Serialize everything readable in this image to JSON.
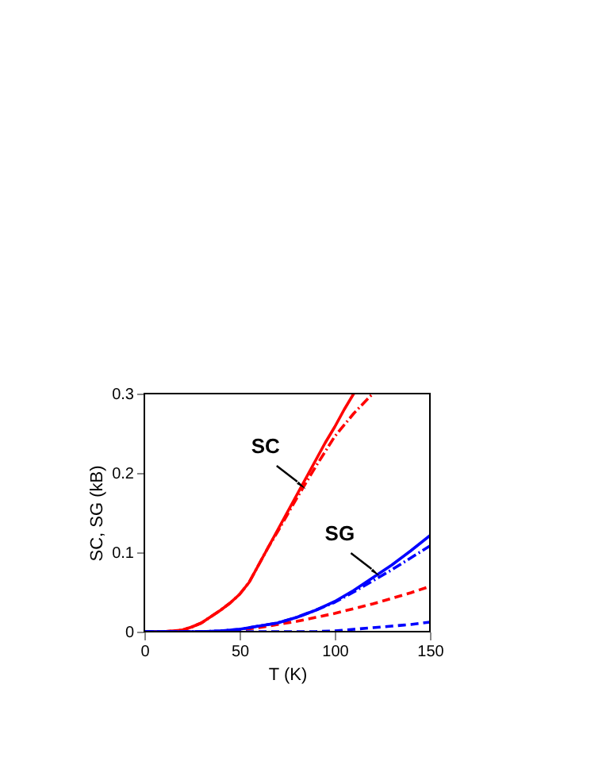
{
  "chart_data": {
    "type": "line",
    "xlabel": "T (K)",
    "ylabel": "SC, SG (kB)",
    "xlim": [
      0,
      150
    ],
    "ylim": [
      0,
      0.3
    ],
    "xticks": [
      0,
      50,
      100,
      150
    ],
    "yticks": [
      {
        "value": 0,
        "label": "0"
      },
      0.1,
      0.2,
      0.3
    ],
    "grid": false,
    "marker": "none",
    "series": [
      {
        "color": "#ff0000",
        "line_style": "solid",
        "x": [
          0,
          10,
          15,
          20,
          25,
          30,
          35,
          40,
          45,
          50,
          55,
          60,
          65,
          70,
          75,
          80,
          85,
          90,
          95,
          100,
          105,
          110
        ],
        "values": [
          0,
          0,
          0.001,
          0.002,
          0.006,
          0.011,
          0.019,
          0.027,
          0.036,
          0.047,
          0.062,
          0.084,
          0.106,
          0.128,
          0.15,
          0.172,
          0.194,
          0.216,
          0.238,
          0.258,
          0.28,
          0.3
        ]
      },
      {
        "color": "#ff0000",
        "line_style": "dotted",
        "x": [
          0,
          10,
          15,
          20,
          25,
          30,
          35,
          40,
          45,
          50,
          55,
          60,
          65,
          70,
          75,
          80,
          85,
          90,
          100,
          110,
          120
        ],
        "values": [
          0,
          0,
          0.001,
          0.002,
          0.006,
          0.011,
          0.019,
          0.027,
          0.036,
          0.047,
          0.062,
          0.084,
          0.106,
          0.126,
          0.147,
          0.168,
          0.188,
          0.208,
          0.246,
          0.275,
          0.3
        ]
      },
      {
        "color": "#ff0000",
        "line_style": "dashed",
        "x": [
          0,
          40,
          50,
          60,
          70,
          80,
          90,
          100,
          110,
          120,
          130,
          140,
          150
        ],
        "values": [
          0,
          0,
          0.002,
          0.005,
          0.009,
          0.013,
          0.018,
          0.023,
          0.029,
          0.035,
          0.042,
          0.049,
          0.057
        ]
      },
      {
        "color": "#0000ff",
        "line_style": "solid",
        "x": [
          0,
          30,
          40,
          50,
          60,
          70,
          80,
          90,
          100,
          110,
          120,
          130,
          140,
          150
        ],
        "values": [
          0,
          0,
          0.001,
          0.003,
          0.007,
          0.011,
          0.018,
          0.027,
          0.038,
          0.052,
          0.068,
          0.084,
          0.102,
          0.121
        ]
      },
      {
        "color": "#0000ff",
        "line_style": "dotted",
        "x": [
          0,
          30,
          40,
          50,
          60,
          70,
          80,
          90,
          100,
          110,
          120,
          130,
          140,
          150
        ],
        "values": [
          0,
          0,
          0.001,
          0.003,
          0.007,
          0.011,
          0.018,
          0.027,
          0.037,
          0.05,
          0.064,
          0.078,
          0.093,
          0.108
        ]
      },
      {
        "color": "#0000ff",
        "line_style": "dashed",
        "x": [
          0,
          80,
          90,
          100,
          110,
          120,
          130,
          140,
          150
        ],
        "values": [
          0,
          0,
          0,
          0.001,
          0.003,
          0.005,
          0.007,
          0.009,
          0.012
        ]
      }
    ],
    "annotations": [
      {
        "text": "SC",
        "x": 82,
        "y": 0.185
      },
      {
        "text": "SG",
        "x": 121,
        "y": 0.075
      }
    ]
  }
}
